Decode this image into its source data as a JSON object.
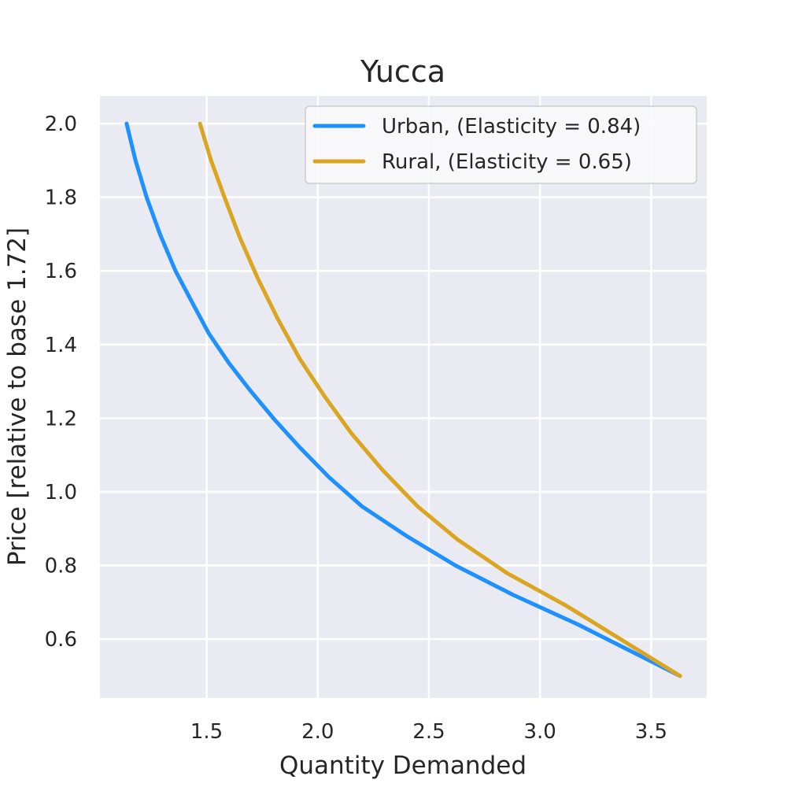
{
  "chart_data": {
    "type": "line",
    "title": "Yucca",
    "xlabel": "Quantity Demanded",
    "ylabel": "Price [relative to base 1.72]",
    "xlim": [
      1.02,
      3.75
    ],
    "ylim": [
      0.44,
      2.075
    ],
    "xticks": [
      1.5,
      2.0,
      2.5,
      3.0,
      3.5
    ],
    "xtick_labels": [
      "1.5",
      "2.0",
      "2.5",
      "3.0",
      "3.5"
    ],
    "yticks": [
      0.6,
      0.8,
      1.0,
      1.2,
      1.4,
      1.6,
      1.8,
      2.0
    ],
    "ytick_labels": [
      "0.6",
      "0.8",
      "1.0",
      "1.2",
      "1.4",
      "1.6",
      "1.8",
      "2.0"
    ],
    "grid": true,
    "legend_position": "top-right",
    "background": "#eaeaf2",
    "series": [
      {
        "name": "Urban, (Elasticity = 0.84)",
        "color": "#1e90ff",
        "x": [
          1.14,
          1.18,
          1.23,
          1.29,
          1.36,
          1.43,
          1.51,
          1.6,
          1.69,
          1.8,
          1.92,
          2.05,
          2.2,
          2.4,
          2.62,
          2.88,
          3.17,
          3.63
        ],
        "y": [
          2.0,
          1.9,
          1.8,
          1.7,
          1.6,
          1.52,
          1.43,
          1.35,
          1.28,
          1.2,
          1.12,
          1.04,
          0.96,
          0.88,
          0.8,
          0.72,
          0.64,
          0.5
        ]
      },
      {
        "name": "Rural, (Elasticity = 0.65)",
        "color": "#daa520",
        "x": [
          1.47,
          1.52,
          1.58,
          1.65,
          1.73,
          1.82,
          1.92,
          2.03,
          2.15,
          2.29,
          2.45,
          2.63,
          2.85,
          3.12,
          3.63
        ],
        "y": [
          2.0,
          1.9,
          1.8,
          1.69,
          1.58,
          1.47,
          1.36,
          1.26,
          1.16,
          1.06,
          0.96,
          0.87,
          0.78,
          0.69,
          0.5
        ]
      }
    ]
  }
}
